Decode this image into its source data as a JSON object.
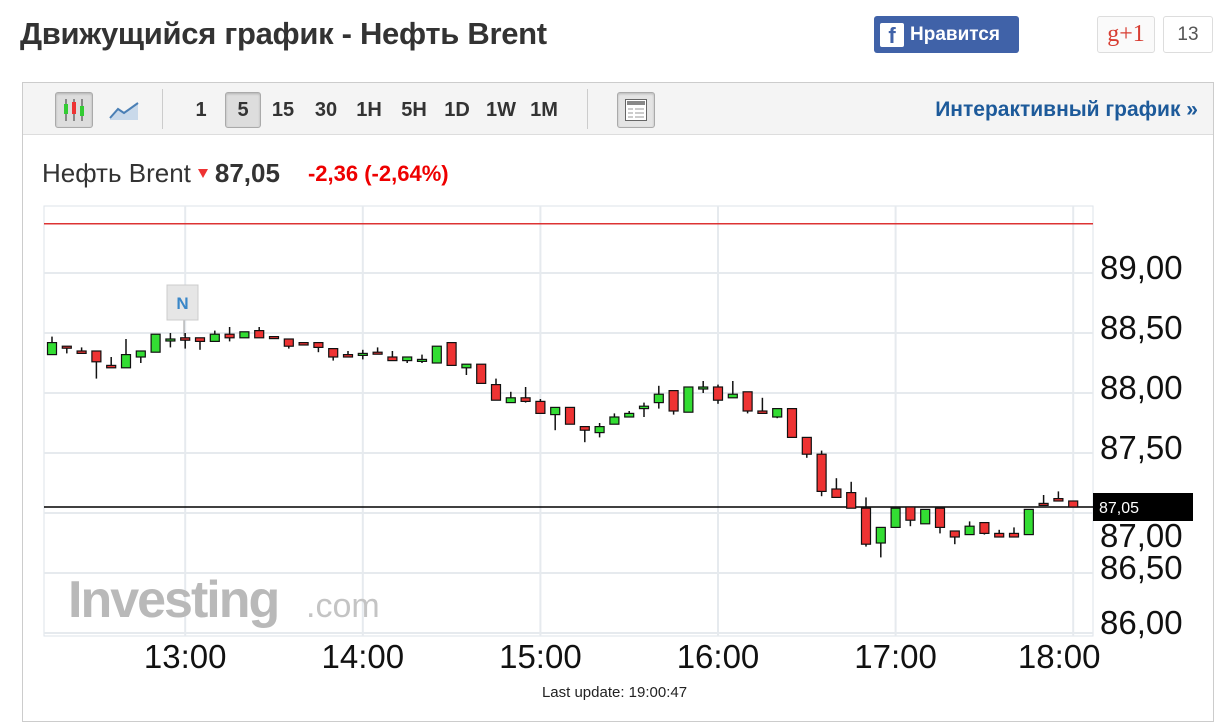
{
  "header": {
    "title": "Движущийся график - Нефть Brent",
    "fb_label": "Нравится",
    "fb_icon": "facebook-icon",
    "gplus_label": "g+1",
    "gplus_count": "13"
  },
  "toolbar": {
    "chart_types": [
      {
        "icon": "candlestick-icon",
        "selected": true
      },
      {
        "icon": "line-chart-icon",
        "selected": false
      }
    ],
    "intervals": [
      {
        "label": "1"
      },
      {
        "label": "5",
        "selected": true
      },
      {
        "label": "15"
      },
      {
        "label": "30"
      },
      {
        "label": "1H"
      },
      {
        "label": "5H"
      },
      {
        "label": "1D"
      },
      {
        "label": "1W"
      },
      {
        "label": "1M"
      }
    ],
    "table_icon": "table-icon",
    "interactive_link": "Интерактивный график »"
  },
  "instrument": {
    "name": "Нефть Brent",
    "price": "87,05",
    "change": "-2,36 (-2,64%)",
    "direction": "down"
  },
  "colors": {
    "up": "#33dd33",
    "down": "#ee3333",
    "prev_close_line": "#dd3333",
    "price_line": "#000000",
    "link": "#1d5a9a"
  },
  "watermark": {
    "brand": "Investing",
    "suffix": ".com"
  },
  "news_marker": {
    "label": "N",
    "time": "13:00"
  },
  "last_update": "Last update: 19:00:47",
  "chart_data": {
    "type": "candlestick",
    "interval_minutes": 5,
    "start_time": "12:15",
    "end_time": "18:00",
    "x_ticks": [
      "13:00",
      "14:00",
      "15:00",
      "16:00",
      "17:00",
      "18:00"
    ],
    "y_ticks": [
      "89,00",
      "88,50",
      "88,00",
      "87,50",
      "87,00",
      "86,50",
      "86,00"
    ],
    "ylim": [
      86.0,
      89.0
    ],
    "grid": true,
    "current_price": 87.05,
    "current_price_label": "87,05",
    "prev_close": 89.41,
    "ohlc": [
      [
        88.32,
        88.47,
        88.32,
        88.42
      ],
      [
        88.39,
        88.39,
        88.33,
        88.38
      ],
      [
        88.35,
        88.38,
        88.33,
        88.33
      ],
      [
        88.35,
        88.35,
        88.12,
        88.26
      ],
      [
        88.23,
        88.3,
        88.21,
        88.21
      ],
      [
        88.21,
        88.45,
        88.21,
        88.32
      ],
      [
        88.3,
        88.35,
        88.25,
        88.35
      ],
      [
        88.34,
        88.49,
        88.34,
        88.49
      ],
      [
        88.45,
        88.5,
        88.38,
        88.45
      ],
      [
        88.46,
        88.5,
        88.37,
        88.44
      ],
      [
        88.46,
        88.46,
        88.36,
        88.43
      ],
      [
        88.43,
        88.52,
        88.43,
        88.49
      ],
      [
        88.49,
        88.55,
        88.43,
        88.46
      ],
      [
        88.46,
        88.51,
        88.46,
        88.51
      ],
      [
        88.52,
        88.55,
        88.46,
        88.46
      ],
      [
        88.47,
        88.47,
        88.46,
        88.46
      ],
      [
        88.45,
        88.45,
        88.37,
        88.39
      ],
      [
        88.42,
        88.42,
        88.4,
        88.4
      ],
      [
        88.42,
        88.42,
        88.34,
        88.38
      ],
      [
        88.37,
        88.37,
        88.27,
        88.3
      ],
      [
        88.32,
        88.35,
        88.3,
        88.3
      ],
      [
        88.33,
        88.36,
        88.28,
        88.33
      ],
      [
        88.34,
        88.38,
        88.33,
        88.33
      ],
      [
        88.3,
        88.35,
        88.27,
        88.27
      ],
      [
        88.27,
        88.3,
        88.25,
        88.3
      ],
      [
        88.28,
        88.32,
        88.25,
        88.28
      ],
      [
        88.25,
        88.39,
        88.25,
        88.39
      ],
      [
        88.42,
        88.42,
        88.23,
        88.23
      ],
      [
        88.21,
        88.24,
        88.15,
        88.24
      ],
      [
        88.24,
        88.24,
        88.08,
        88.08
      ],
      [
        88.07,
        88.12,
        87.94,
        87.94
      ],
      [
        87.92,
        88.01,
        87.92,
        87.96
      ],
      [
        87.96,
        88.05,
        87.92,
        87.93
      ],
      [
        87.93,
        87.95,
        87.83,
        87.83
      ],
      [
        87.82,
        87.88,
        87.69,
        87.88
      ],
      [
        87.88,
        87.88,
        87.74,
        87.74
      ],
      [
        87.72,
        87.72,
        87.59,
        87.69
      ],
      [
        87.67,
        87.75,
        87.63,
        87.72
      ],
      [
        87.74,
        87.83,
        87.74,
        87.8
      ],
      [
        87.8,
        87.85,
        87.8,
        87.83
      ],
      [
        87.87,
        87.92,
        87.8,
        87.89
      ],
      [
        87.92,
        88.06,
        87.87,
        87.99
      ],
      [
        88.02,
        88.02,
        87.82,
        87.85
      ],
      [
        87.84,
        88.05,
        87.84,
        88.05
      ],
      [
        88.05,
        88.1,
        88.0,
        88.05
      ],
      [
        88.05,
        88.07,
        87.91,
        87.94
      ],
      [
        87.96,
        88.1,
        87.96,
        87.99
      ],
      [
        88.01,
        88.01,
        87.83,
        87.85
      ],
      [
        87.85,
        87.96,
        87.83,
        87.83
      ],
      [
        87.8,
        87.87,
        87.79,
        87.87
      ],
      [
        87.87,
        87.87,
        87.63,
        87.63
      ],
      [
        87.63,
        87.63,
        87.46,
        87.49
      ],
      [
        87.49,
        87.52,
        87.14,
        87.18
      ],
      [
        87.2,
        87.29,
        87.13,
        87.13
      ],
      [
        87.17,
        87.26,
        87.04,
        87.04
      ],
      [
        87.04,
        87.13,
        86.72,
        86.74
      ],
      [
        86.75,
        86.88,
        86.63,
        86.88
      ],
      [
        86.88,
        87.04,
        86.88,
        87.04
      ],
      [
        87.05,
        87.05,
        86.89,
        86.94
      ],
      [
        86.91,
        87.03,
        86.91,
        87.03
      ],
      [
        87.04,
        87.04,
        86.83,
        86.88
      ],
      [
        86.85,
        86.85,
        86.74,
        86.8
      ],
      [
        86.82,
        86.93,
        86.82,
        86.89
      ],
      [
        86.92,
        86.92,
        86.82,
        86.83
      ],
      [
        86.83,
        86.86,
        86.8,
        86.8
      ],
      [
        86.83,
        86.88,
        86.8,
        86.8
      ],
      [
        86.82,
        87.03,
        86.82,
        87.03
      ],
      [
        87.08,
        87.15,
        87.07,
        87.07
      ],
      [
        87.12,
        87.18,
        87.1,
        87.1
      ],
      [
        87.1,
        87.1,
        87.05,
        87.05
      ]
    ]
  }
}
